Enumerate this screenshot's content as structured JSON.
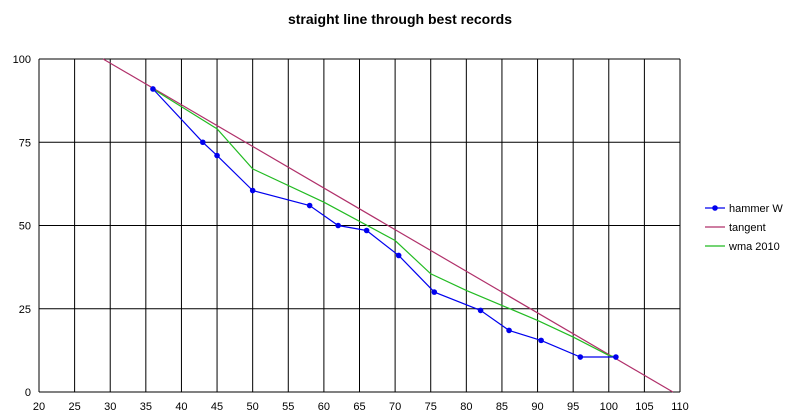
{
  "chart_data": {
    "type": "line",
    "title": "straight line through best records",
    "xlabel": "",
    "ylabel": "",
    "xlim": [
      20,
      110
    ],
    "ylim": [
      0,
      100
    ],
    "x_ticks": [
      20,
      25,
      30,
      35,
      40,
      45,
      50,
      55,
      60,
      65,
      70,
      75,
      80,
      85,
      90,
      95,
      100,
      105,
      110
    ],
    "y_ticks": [
      0,
      25,
      50,
      75,
      100
    ],
    "grid": true,
    "legend_position": "right",
    "series": [
      {
        "name": "hammer W",
        "color": "#0000ee",
        "marker": true,
        "points": [
          [
            36,
            91
          ],
          [
            43,
            75
          ],
          [
            45,
            71
          ],
          [
            50,
            60.5
          ],
          [
            58,
            56
          ],
          [
            62,
            50
          ],
          [
            66,
            48.5
          ],
          [
            70.5,
            41
          ],
          [
            75.5,
            30
          ],
          [
            82,
            24.5
          ],
          [
            86,
            18.5
          ],
          [
            90.5,
            15.5
          ],
          [
            96,
            10.5
          ],
          [
            101,
            10.5
          ]
        ]
      },
      {
        "name": "tangent",
        "color": "#b0306a",
        "marker": false,
        "points": [
          [
            29,
            100
          ],
          [
            109,
            0
          ]
        ]
      },
      {
        "name": "wma 2010",
        "color": "#22bb22",
        "marker": false,
        "points": [
          [
            36,
            91
          ],
          [
            45,
            79
          ],
          [
            50,
            67
          ],
          [
            60,
            57
          ],
          [
            70,
            45.5
          ],
          [
            75,
            35.5
          ],
          [
            80,
            30.5
          ],
          [
            85,
            26
          ],
          [
            90,
            21.5
          ],
          [
            95,
            16.5
          ],
          [
            100,
            11
          ],
          [
            101,
            10.5
          ]
        ]
      }
    ]
  }
}
